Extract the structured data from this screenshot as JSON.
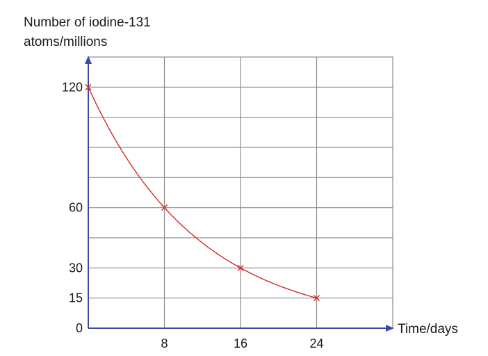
{
  "chart_data": {
    "type": "line",
    "ylabel_line1": "Number of iodine-131",
    "ylabel_line2": "atoms/millions",
    "xlabel": "Time/days",
    "x_ticks": [
      "8",
      "16",
      "24"
    ],
    "y_ticks": [
      "0",
      "15",
      "30",
      "60",
      "120"
    ],
    "xlim": [
      0,
      32
    ],
    "ylim": [
      0,
      135
    ],
    "grid": true,
    "series": [
      {
        "x": [
          0,
          8,
          16,
          24
        ],
        "values": [
          120,
          60,
          30,
          15
        ]
      }
    ],
    "colors": {
      "axis": "#3b4aa8",
      "grid": "#8c8c8c",
      "curve": "#d42a2a",
      "marker": "#d42a2a"
    }
  }
}
